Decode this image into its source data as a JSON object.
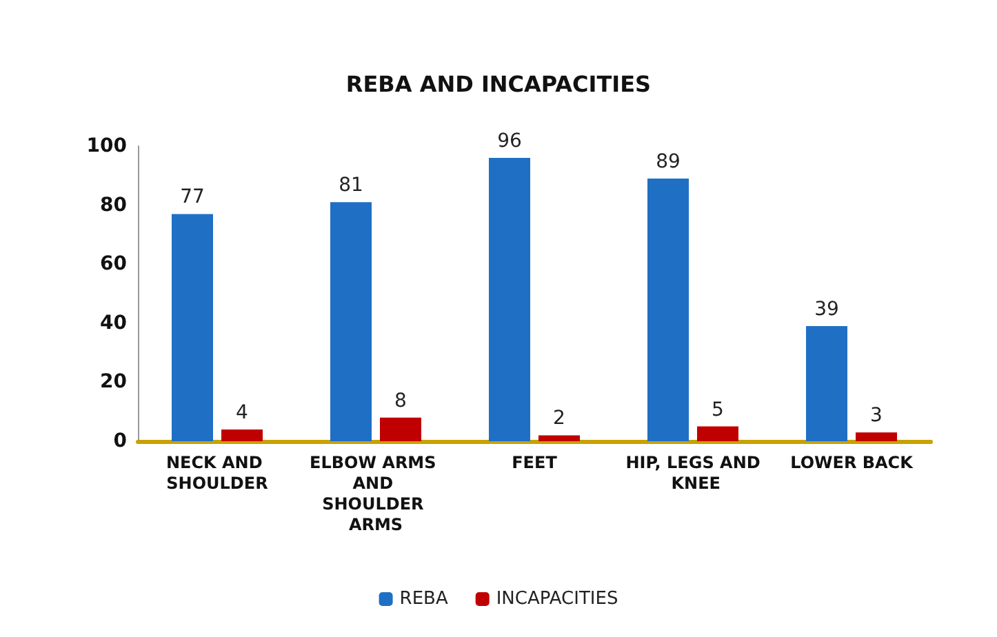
{
  "chart_data": {
    "type": "bar",
    "title": "REBA AND INCAPACITIES",
    "categories": [
      "NECK AND SHOULDER",
      "ELBOW ARMS AND SHOULDER ARMS",
      "FEET",
      "HIP, LEGS AND KNEE",
      "LOWER BACK"
    ],
    "series": [
      {
        "name": "REBA",
        "color": "#1f6fc5",
        "values": [
          77,
          81,
          96,
          89,
          39
        ]
      },
      {
        "name": "INCAPACITIES",
        "color": "#c00000",
        "values": [
          4,
          8,
          2,
          5,
          3
        ]
      }
    ],
    "ylim": [
      0,
      100
    ],
    "yticks": [
      0,
      20,
      40,
      60,
      80,
      100
    ],
    "grid": false,
    "legend": "bottom",
    "data_labels": true
  }
}
